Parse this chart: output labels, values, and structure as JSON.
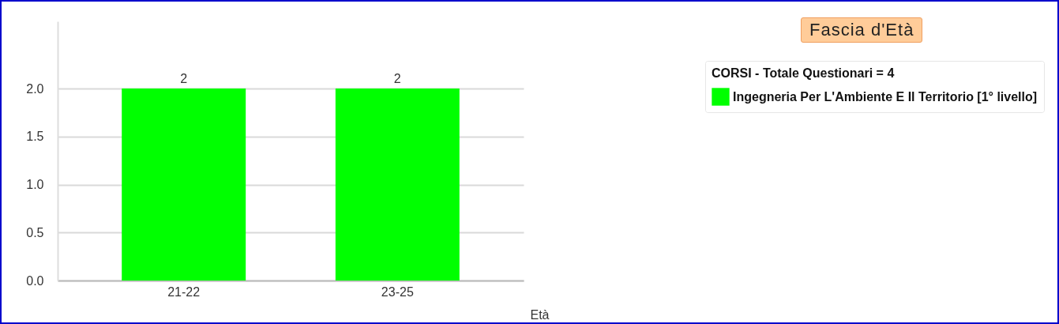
{
  "chart_data": {
    "type": "bar",
    "title": "Fascia d'Età",
    "xlabel": "Età",
    "legend_title": "CORSI - Totale Questionari = 4",
    "categories": [
      "21-22",
      "23-25"
    ],
    "series": [
      {
        "name": "Ingegneria Per L'Ambiente E Il Territorio [1° livello]",
        "color": "#00ff00",
        "values": [
          2,
          2
        ]
      }
    ],
    "ylim": [
      0,
      2.7
    ],
    "yticks": [
      {
        "value": 0,
        "label": "0.0"
      },
      {
        "value": 0.5,
        "label": "0.5"
      },
      {
        "value": 1,
        "label": "1.0"
      },
      {
        "value": 1.5,
        "label": "1.5"
      },
      {
        "value": 2,
        "label": "2.0"
      }
    ],
    "grid": "y",
    "legend": "top right",
    "data_labels": true
  }
}
